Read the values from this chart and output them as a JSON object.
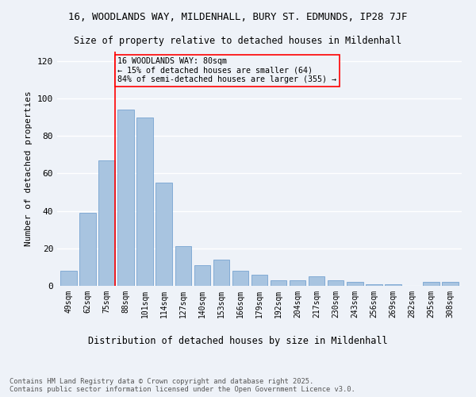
{
  "title": "16, WOODLANDS WAY, MILDENHALL, BURY ST. EDMUNDS, IP28 7JF",
  "subtitle": "Size of property relative to detached houses in Mildenhall",
  "xlabel": "Distribution of detached houses by size in Mildenhall",
  "ylabel": "Number of detached properties",
  "categories": [
    "49sqm",
    "62sqm",
    "75sqm",
    "88sqm",
    "101sqm",
    "114sqm",
    "127sqm",
    "140sqm",
    "153sqm",
    "166sqm",
    "179sqm",
    "192sqm",
    "204sqm",
    "217sqm",
    "230sqm",
    "243sqm",
    "256sqm",
    "269sqm",
    "282sqm",
    "295sqm",
    "308sqm"
  ],
  "values": [
    8,
    39,
    67,
    94,
    90,
    55,
    21,
    11,
    14,
    8,
    6,
    3,
    3,
    5,
    3,
    2,
    1,
    1,
    0,
    2,
    2
  ],
  "bar_color": "#a8c4e0",
  "bar_edge_color": "#6699cc",
  "red_line_index": 2,
  "annotation_title": "16 WOODLANDS WAY: 80sqm",
  "annotation_line1": "← 15% of detached houses are smaller (64)",
  "annotation_line2": "84% of semi-detached houses are larger (355) →",
  "ylim": [
    0,
    125
  ],
  "yticks": [
    0,
    20,
    40,
    60,
    80,
    100,
    120
  ],
  "background_color": "#eef2f8",
  "grid_color": "#ffffff",
  "footer_line1": "Contains HM Land Registry data © Crown copyright and database right 2025.",
  "footer_line2": "Contains public sector information licensed under the Open Government Licence v3.0."
}
